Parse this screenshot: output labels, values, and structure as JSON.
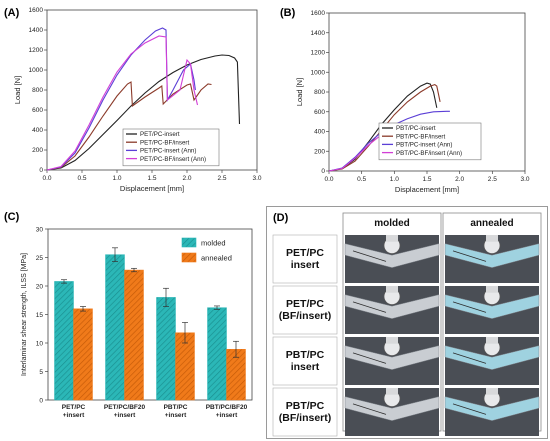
{
  "panels": {
    "a": "(A)",
    "b": "(B)",
    "c": "(C)",
    "d": "(D)"
  },
  "chart_data": [
    {
      "type": "line",
      "panel": "(A)",
      "xlabel": "Displacement [mm]",
      "ylabel": "Load [N]",
      "xlim": [
        0,
        3.0
      ],
      "ylim": [
        0,
        1600
      ],
      "xticks": [
        "0.0",
        "0.5",
        "1.0",
        "1.5",
        "2.0",
        "2.5",
        "3.0"
      ],
      "yticks": [
        "0",
        "200",
        "400",
        "600",
        "800",
        "1000",
        "1200",
        "1400",
        "1600"
      ],
      "legend_position": "lower-center",
      "series": [
        {
          "name": "PET/PC-insert",
          "color": "#222222",
          "points": [
            [
              0,
              0
            ],
            [
              0.2,
              20
            ],
            [
              0.4,
              95
            ],
            [
              0.6,
              215
            ],
            [
              0.8,
              355
            ],
            [
              1.0,
              495
            ],
            [
              1.2,
              640
            ],
            [
              1.4,
              770
            ],
            [
              1.6,
              885
            ],
            [
              1.8,
              975
            ],
            [
              2.0,
              1050
            ],
            [
              2.2,
              1105
            ],
            [
              2.4,
              1140
            ],
            [
              2.5,
              1150
            ],
            [
              2.6,
              1145
            ],
            [
              2.68,
              1120
            ],
            [
              2.72,
              1080
            ],
            [
              2.75,
              460
            ]
          ]
        },
        {
          "name": "PET/PC-BF/insert",
          "color": "#8b3a2a",
          "points": [
            [
              0,
              0
            ],
            [
              0.2,
              25
            ],
            [
              0.4,
              140
            ],
            [
              0.6,
              330
            ],
            [
              0.8,
              540
            ],
            [
              1.0,
              740
            ],
            [
              1.15,
              860
            ],
            [
              1.2,
              880
            ],
            [
              1.22,
              640
            ],
            [
              1.4,
              730
            ],
            [
              1.6,
              820
            ],
            [
              1.64,
              840
            ],
            [
              1.66,
              660
            ],
            [
              1.8,
              760
            ],
            [
              2.0,
              850
            ],
            [
              2.05,
              860
            ],
            [
              2.1,
              700
            ],
            [
              2.2,
              800
            ],
            [
              2.3,
              860
            ],
            [
              2.35,
              855
            ]
          ]
        },
        {
          "name": "PET/PC-insert (Ann)",
          "color": "#5b3fd6",
          "points": [
            [
              0,
              0
            ],
            [
              0.2,
              30
            ],
            [
              0.4,
              170
            ],
            [
              0.6,
              420
            ],
            [
              0.8,
              700
            ],
            [
              1.0,
              950
            ],
            [
              1.2,
              1150
            ],
            [
              1.4,
              1300
            ],
            [
              1.55,
              1390
            ],
            [
              1.65,
              1420
            ],
            [
              1.7,
              1400
            ],
            [
              1.72,
              700
            ],
            [
              1.8,
              800
            ],
            [
              1.95,
              1000
            ],
            [
              2.05,
              1060
            ],
            [
              2.1,
              900
            ],
            [
              2.12,
              800
            ]
          ]
        },
        {
          "name": "PET/PC-BF/insert (Ann)",
          "color": "#d23fd6",
          "points": [
            [
              0,
              0
            ],
            [
              0.2,
              35
            ],
            [
              0.4,
              190
            ],
            [
              0.6,
              450
            ],
            [
              0.8,
              730
            ],
            [
              1.0,
              980
            ],
            [
              1.2,
              1160
            ],
            [
              1.4,
              1270
            ],
            [
              1.6,
              1340
            ],
            [
              1.7,
              1330
            ],
            [
              1.72,
              700
            ],
            [
              1.9,
              800
            ],
            [
              2.0,
              1100
            ],
            [
              2.05,
              1060
            ],
            [
              2.1,
              800
            ],
            [
              2.15,
              650
            ]
          ]
        }
      ]
    },
    {
      "type": "line",
      "panel": "(B)",
      "xlabel": "Displacement [mm]",
      "ylabel": "Load [N]",
      "xlim": [
        0,
        3.0
      ],
      "ylim": [
        0,
        1600
      ],
      "xticks": [
        "0.0",
        "0.5",
        "1.0",
        "1.5",
        "2.0",
        "2.5",
        "3.0"
      ],
      "yticks": [
        "0",
        "200",
        "400",
        "600",
        "800",
        "1000",
        "1200",
        "1400",
        "1600"
      ],
      "legend_position": "middle-right",
      "series": [
        {
          "name": "PBT/PC-insert",
          "color": "#222222",
          "points": [
            [
              0,
              0
            ],
            [
              0.2,
              25
            ],
            [
              0.4,
              120
            ],
            [
              0.6,
              290
            ],
            [
              0.8,
              470
            ],
            [
              1.0,
              620
            ],
            [
              1.2,
              760
            ],
            [
              1.4,
              860
            ],
            [
              1.5,
              890
            ],
            [
              1.55,
              880
            ],
            [
              1.6,
              800
            ],
            [
              1.65,
              640
            ]
          ]
        },
        {
          "name": "PBT/PC-BF/insert",
          "color": "#8b3a2a",
          "points": [
            [
              0,
              0
            ],
            [
              0.2,
              20
            ],
            [
              0.4,
              100
            ],
            [
              0.6,
              250
            ],
            [
              0.8,
              410
            ],
            [
              1.0,
              570
            ],
            [
              1.2,
              700
            ],
            [
              1.4,
              800
            ],
            [
              1.55,
              860
            ],
            [
              1.62,
              875
            ],
            [
              1.65,
              860
            ],
            [
              1.7,
              700
            ]
          ]
        },
        {
          "name": "PBT/PC-insert (Ann)",
          "color": "#5b3fd6",
          "points": [
            [
              0,
              0
            ],
            [
              0.2,
              30
            ],
            [
              0.4,
              140
            ],
            [
              0.6,
              280
            ],
            [
              0.8,
              390
            ],
            [
              1.0,
              470
            ],
            [
              1.2,
              530
            ],
            [
              1.4,
              575
            ],
            [
              1.6,
              600
            ],
            [
              1.8,
              605
            ],
            [
              1.85,
              605
            ]
          ]
        },
        {
          "name": "PBT/PC-BF/insert (Ann)",
          "color": "#d23fd6",
          "points": [
            [
              0,
              0
            ],
            [
              0.2,
              25
            ],
            [
              0.4,
              130
            ],
            [
              0.6,
              260
            ],
            [
              0.75,
              340
            ],
            [
              0.85,
              380
            ],
            [
              0.9,
              360
            ],
            [
              0.93,
              150
            ]
          ]
        }
      ]
    },
    {
      "type": "bar",
      "panel": "(C)",
      "ylabel": "Interlaminar shear strength, ILSS [MPa]",
      "ylim": [
        0,
        30
      ],
      "yticks": [
        "0",
        "5",
        "10",
        "15",
        "20",
        "25",
        "30"
      ],
      "categories": [
        [
          "PET/PC",
          "+insert"
        ],
        [
          "PET/PC/BF20",
          "+insert"
        ],
        [
          "PBT/PC",
          "+insert"
        ],
        [
          "PBT/PC/BF20",
          "+insert"
        ]
      ],
      "legend_position": "top-right",
      "series": [
        {
          "name": "molded",
          "color": "#2bb7b7",
          "values": [
            20.8,
            25.5,
            18.0,
            16.2
          ],
          "errors": [
            0.3,
            1.2,
            1.6,
            0.3
          ]
        },
        {
          "name": "annealed",
          "color": "#f07a1a",
          "values": [
            16.0,
            22.8,
            11.8,
            8.9
          ],
          "errors": [
            0.4,
            0.3,
            1.8,
            1.4
          ]
        }
      ]
    }
  ],
  "photo_grid": {
    "columns": [
      "molded",
      "annealed"
    ],
    "rows": [
      [
        "PET/PC",
        "insert"
      ],
      [
        "PET/PC",
        "(BF/insert)"
      ],
      [
        "PBT/PC",
        "insert"
      ],
      [
        "PBT/PC",
        "(BF/insert)"
      ]
    ],
    "colors": {
      "metal_light": "#c9cdd2",
      "metal_dark": "#4a4e55",
      "tint_annealed": "#9fd2e0"
    }
  }
}
